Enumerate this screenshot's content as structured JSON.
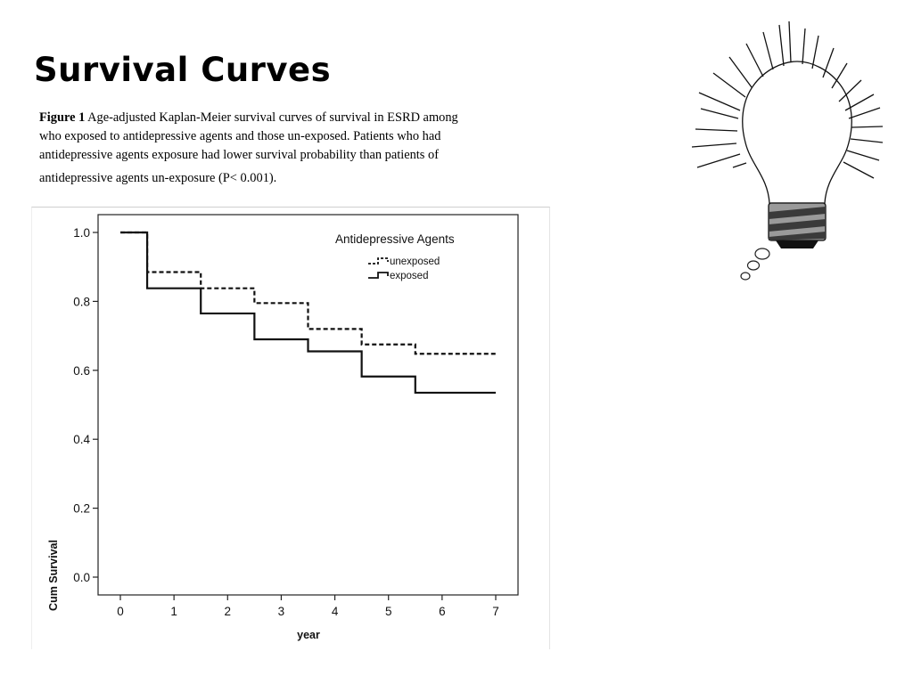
{
  "slide": {
    "title": "Survival Curves"
  },
  "caption": {
    "label": "Figure 1",
    "lines": [
      " Age-adjusted Kaplan-Meier survival curves of survival in ESRD among",
      "who exposed to antidepressive agents and those un-exposed. Patients who had",
      "antidepressive agents exposure had lower survival probability than patients of",
      "antidepressive agents un-exposure (P< 0.001)."
    ]
  },
  "chart_data": {
    "type": "line",
    "step": true,
    "xlabel": "year",
    "ylabel": "Cum Survival",
    "xlim": [
      0,
      7
    ],
    "ylim": [
      0,
      1
    ],
    "xticks": [
      0,
      1,
      2,
      3,
      4,
      5,
      6,
      7
    ],
    "yticks": [
      0.0,
      0.2,
      0.4,
      0.6,
      0.8,
      1.0
    ],
    "ytick_labels": [
      "0.0",
      "0.2",
      "0.4",
      "0.6",
      "0.8",
      "1.0"
    ],
    "grid": false,
    "legend": {
      "title": "Antidepressive Agents",
      "position": "top-right"
    },
    "series": [
      {
        "name": "unexposed",
        "style": "dashed",
        "x": [
          0,
          0.5,
          1.5,
          2.5,
          3.5,
          4.5,
          5.5,
          7
        ],
        "y": [
          1.0,
          0.885,
          0.838,
          0.795,
          0.72,
          0.675,
          0.648,
          0.648
        ]
      },
      {
        "name": "exposed",
        "style": "solid",
        "x": [
          0,
          0.5,
          1.5,
          2.5,
          3.5,
          4.5,
          5.5,
          7
        ],
        "y": [
          1.0,
          0.838,
          0.765,
          0.69,
          0.655,
          0.582,
          0.535,
          0.535
        ]
      }
    ]
  },
  "decoration": {
    "icon": "lightbulb-icon"
  }
}
